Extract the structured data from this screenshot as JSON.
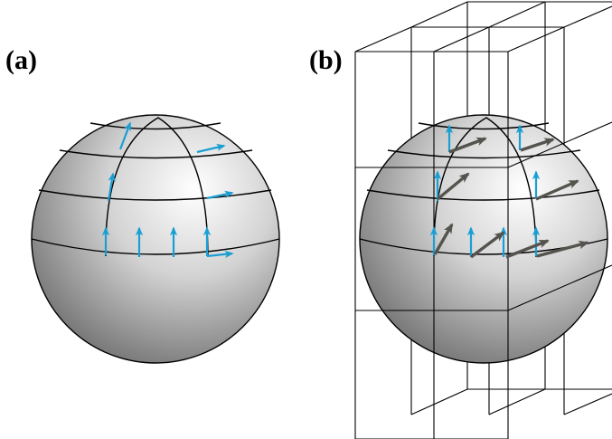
{
  "labels": {
    "panel_a": "(a)",
    "panel_b": "(b)"
  },
  "colors": {
    "tangent_arrow": "#1a9fd4",
    "displaced_arrow": "#55534d",
    "outline": "#000000",
    "sphere_light": "#ffffff",
    "sphere_dark": "#6f6f6f"
  },
  "icons": {
    "tangent_arrow": "arrow-icon",
    "displaced_arrow": "arrow-icon"
  }
}
